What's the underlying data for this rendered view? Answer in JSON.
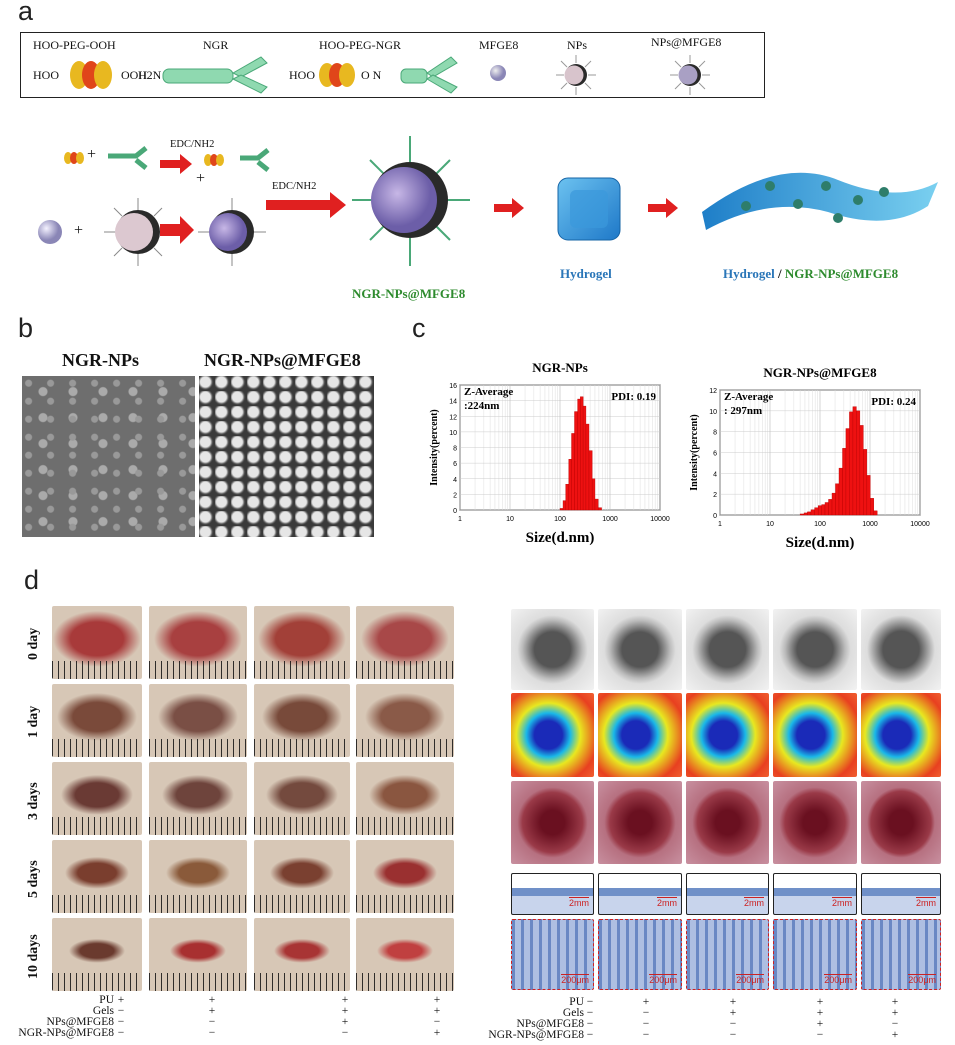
{
  "panel_labels": {
    "a": "a",
    "b": "b",
    "c": "c",
    "d": "d"
  },
  "legend": {
    "peg": "HOO-PEG-OOH",
    "peg_left": "HOO",
    "peg_right": "OOH",
    "ngr": "NGR",
    "ngr_h2n": "H2N",
    "peg_ngr": "HOO-PEG-NGR",
    "peg_ngr_hoo": "HOO",
    "peg_ngr_on": "O   N",
    "mfge8": "MFGE8",
    "nps": "NPs",
    "nps_mfge8": "NPs@MFGE8"
  },
  "scheme": {
    "edc1": "EDC/NH2",
    "edc2": "EDC/NH2",
    "plus": "+",
    "product": "NGR-NPs@MFGE8",
    "hydrogel": "Hydrogel",
    "final_a": "Hydrogel",
    "final_sep": " / ",
    "final_b": "NGR-NPs@MFGE8",
    "colors": {
      "green": "#2e8b2e",
      "blue": "#2a76b8",
      "red": "#e02020"
    }
  },
  "panel_b": {
    "left_title": "NGR-NPs",
    "right_title": "NGR-NPs@MFGE8"
  },
  "chart_data": [
    {
      "type": "bar",
      "title": "NGR-NPs",
      "xlabel": "Size(d.nm)",
      "ylabel": "Intensity(percent)",
      "xscale": "log",
      "xticks": [
        "1",
        "10",
        "100",
        "1000",
        "10000"
      ],
      "yticks": [
        "0",
        "2",
        "4",
        "6",
        "8",
        "10",
        "12",
        "14",
        "16"
      ],
      "ylim": [
        0,
        16
      ],
      "annotation_left": "Z-Average",
      "annotation_left2": ":224nm",
      "annotation_right": "PDI: 0.19",
      "x": [
        100,
        115,
        130,
        150,
        170,
        195,
        225,
        255,
        290,
        330,
        380,
        440,
        500,
        580
      ],
      "values": [
        0.2,
        1.2,
        3.3,
        6.5,
        9.8,
        12.6,
        14.2,
        14.5,
        13.3,
        11.0,
        7.6,
        4.0,
        1.4,
        0.3
      ]
    },
    {
      "type": "bar",
      "title": "NGR-NPs@MFGE8",
      "xlabel": "Size(d.nm)",
      "ylabel": "Intensity(percent)",
      "xscale": "log",
      "xticks": [
        "1",
        "10",
        "100",
        "1000",
        "10000"
      ],
      "yticks": [
        "0",
        "2",
        "4",
        "6",
        "8",
        "10",
        "12"
      ],
      "ylim": [
        0,
        12
      ],
      "annotation_left": "Z-Average",
      "annotation_left2": ": 297nm",
      "annotation_right": "PDI: 0.24",
      "x": [
        40,
        48,
        56,
        66,
        78,
        92,
        108,
        126,
        148,
        174,
        204,
        240,
        282,
        330,
        388,
        455,
        534,
        627,
        736,
        864,
        1014,
        1190
      ],
      "values": [
        0.1,
        0.2,
        0.3,
        0.5,
        0.7,
        0.9,
        1.0,
        1.2,
        1.5,
        2.1,
        3.0,
        4.5,
        6.4,
        8.3,
        9.9,
        10.4,
        10.0,
        8.6,
        6.3,
        3.8,
        1.6,
        0.4
      ]
    }
  ],
  "panel_d": {
    "days": [
      "0 day",
      "1 day",
      "3 days",
      "5 days",
      "10 days"
    ],
    "left_conditions": [
      "PU",
      "Gels",
      "NPs@MFGE8",
      "NGR-NPs@MFGE8"
    ],
    "left_marks": [
      [
        "+",
        "−",
        "−",
        "−"
      ],
      [
        "+",
        "+",
        "−",
        "−"
      ],
      [
        "+",
        "+",
        "+",
        "−"
      ],
      [
        "+",
        "+",
        "−",
        "+"
      ]
    ],
    "right_conditions": [
      "PU",
      "Gels",
      "NPs@MFGE8",
      "NGR-NPs@MFGE8"
    ],
    "right_marks": [
      [
        "−",
        "−",
        "−",
        "−"
      ],
      [
        "+",
        "−",
        "−",
        "−"
      ],
      [
        "+",
        "+",
        "−",
        "−"
      ],
      [
        "+",
        "+",
        "+",
        "−"
      ],
      [
        "+",
        "+",
        "−",
        "+"
      ]
    ],
    "scale_2mm": "2mm",
    "scale_200um": "200μm"
  }
}
